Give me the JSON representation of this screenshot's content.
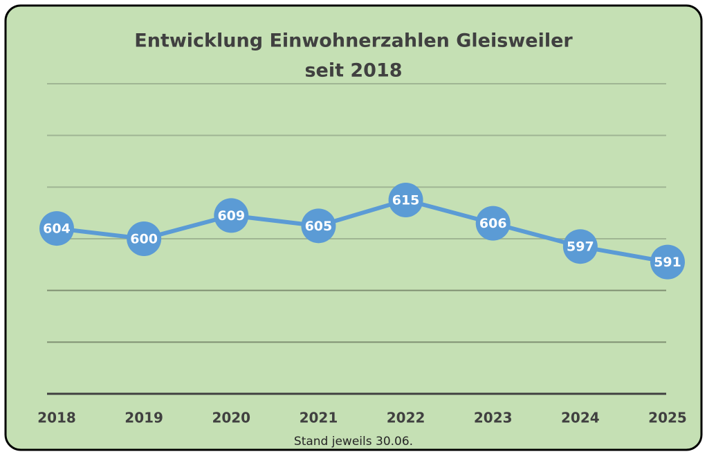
{
  "chart_data": {
    "type": "line",
    "title": [
      "Entwicklung Einwohnerzahlen Gleisweiler",
      "seit 2018"
    ],
    "x_label": "Stand jeweils 30.06.",
    "categories": [
      "2018",
      "2019",
      "2020",
      "2021",
      "2022",
      "2023",
      "2024",
      "2025"
    ],
    "values": [
      604,
      600,
      609,
      605,
      615,
      606,
      597,
      591
    ],
    "color": "#5b9bd5",
    "ylim": [
      540,
      660
    ],
    "yticks": [
      540,
      560,
      580,
      600,
      620,
      640,
      660
    ],
    "grid": true
  }
}
